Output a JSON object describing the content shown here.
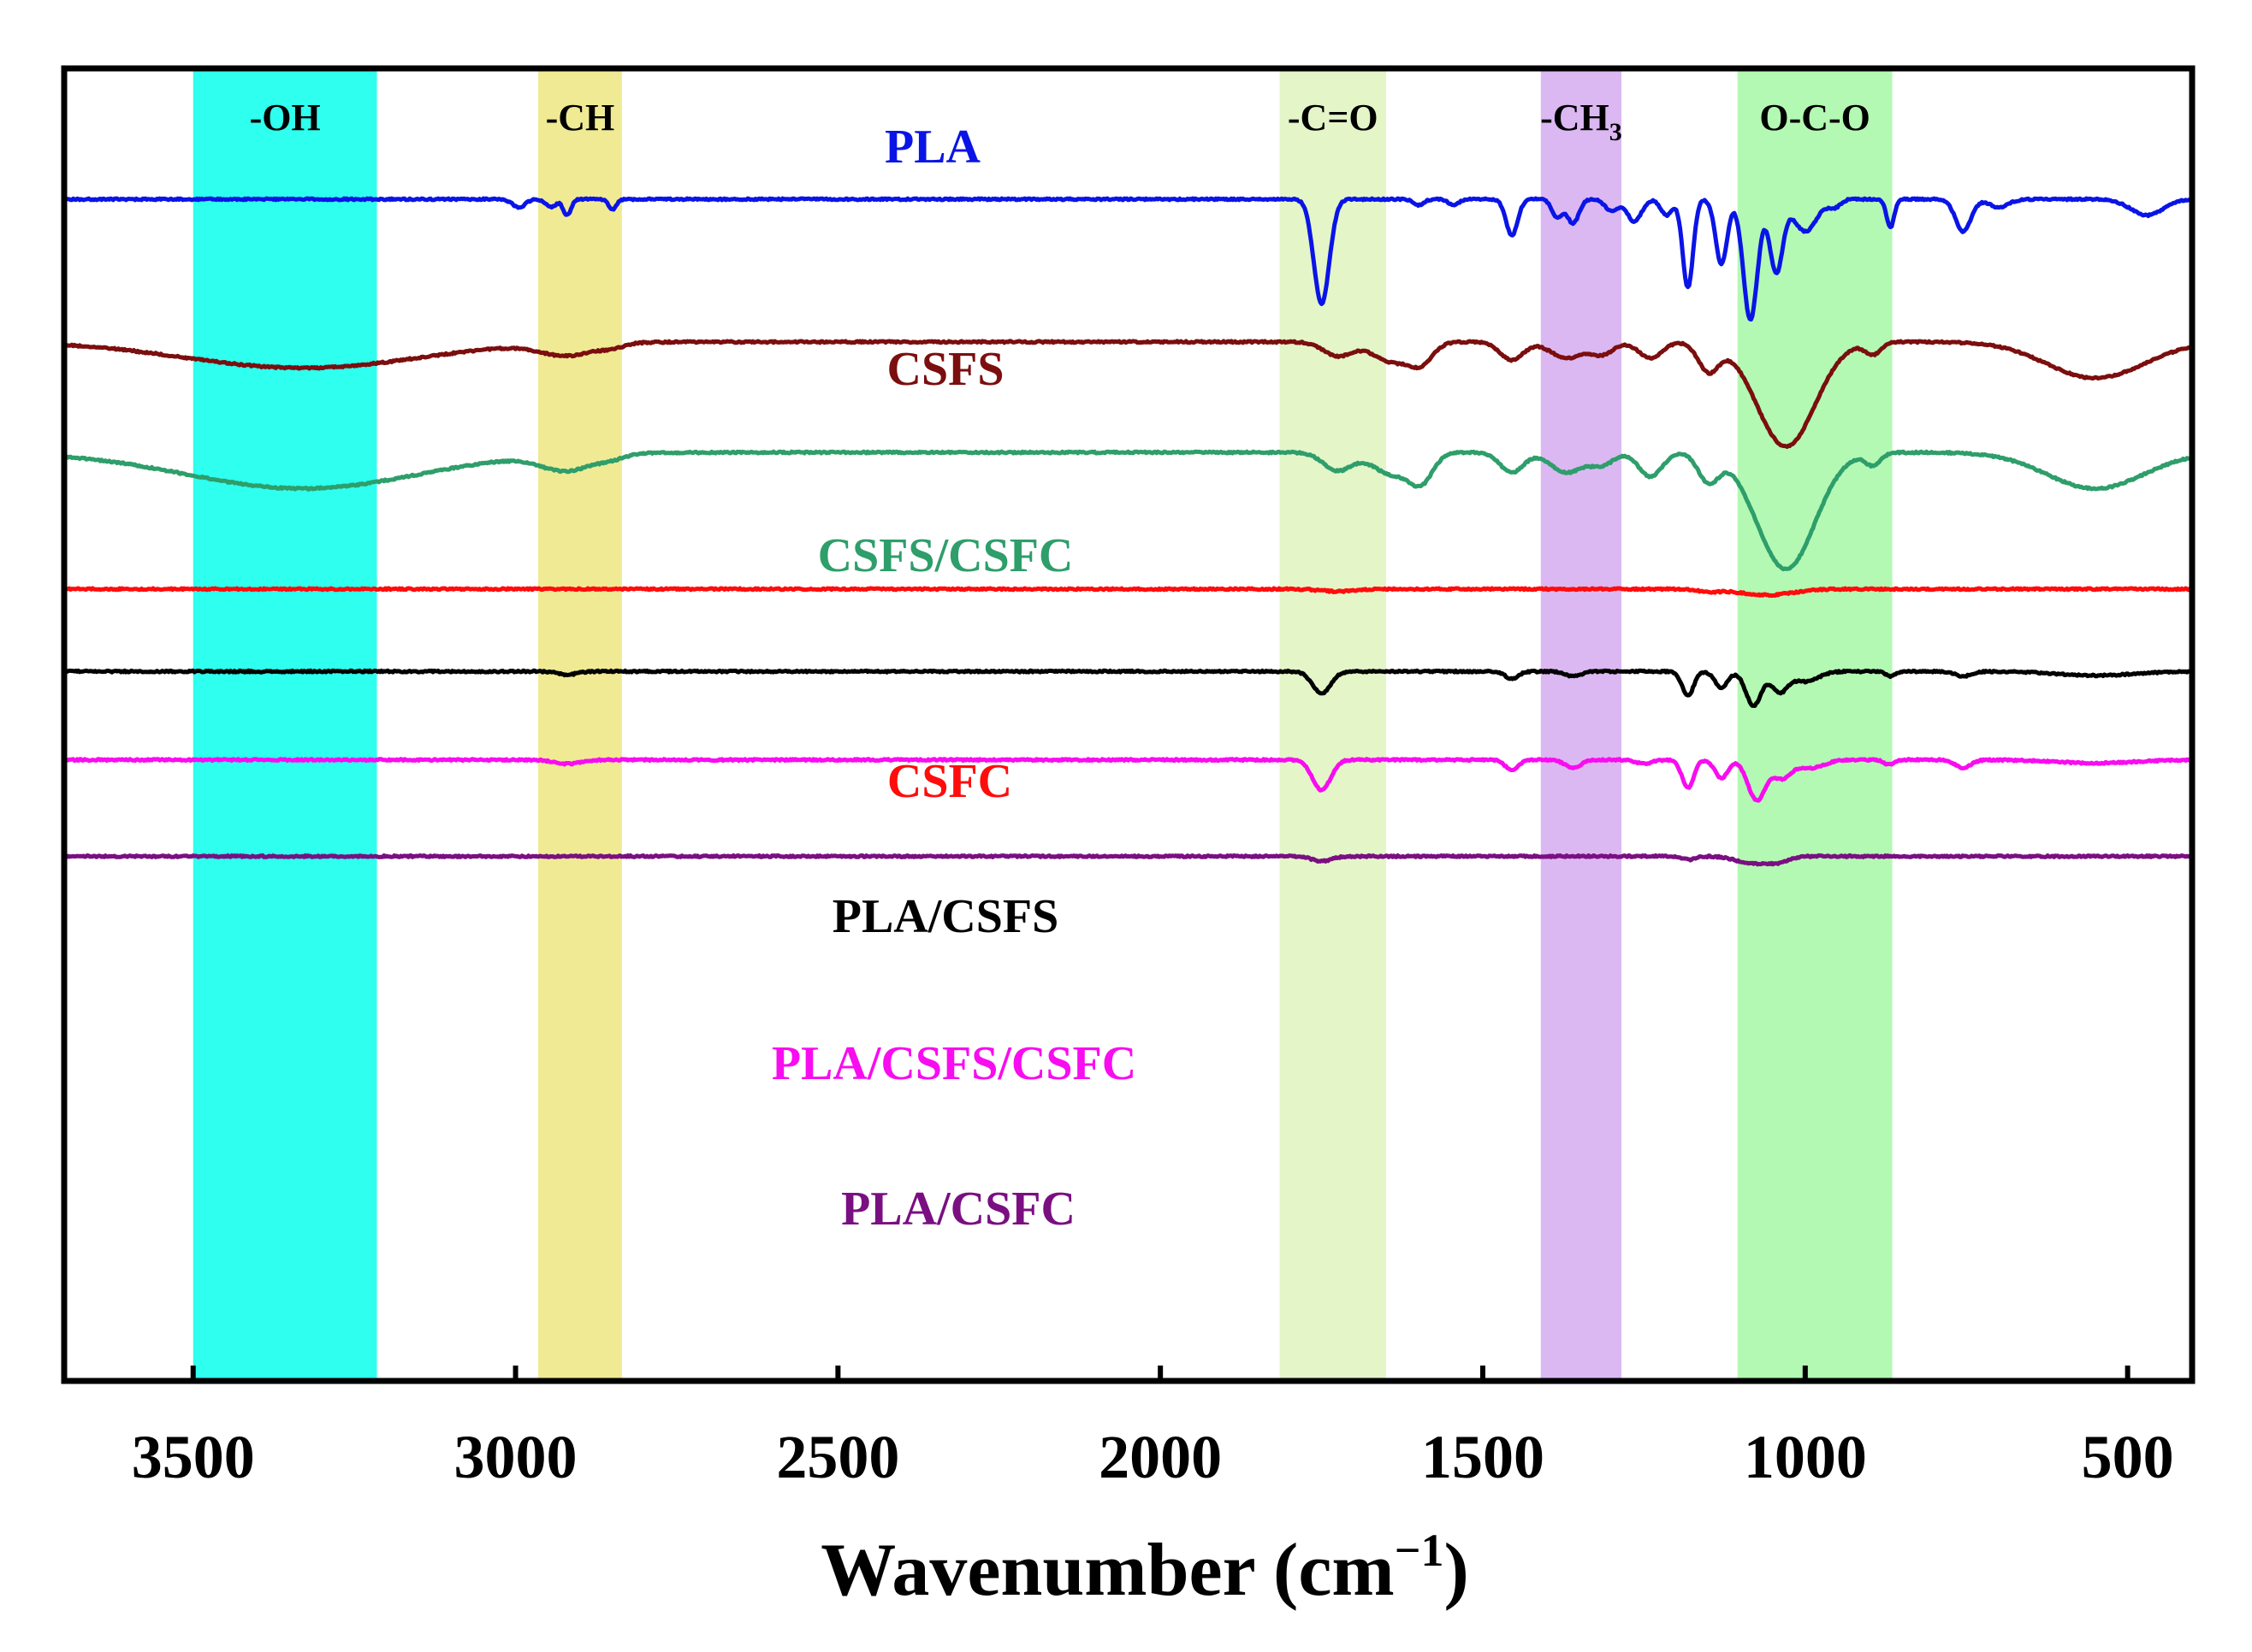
{
  "chart_data": {
    "type": "line",
    "title": "",
    "xlabel": "Wavenumber (cm⁻¹)",
    "xlabel_main": "Wavenumber (cm",
    "xlabel_sup": "−1",
    "xlabel_close": ")",
    "ylabel": "",
    "xlim": [
      3700,
      400
    ],
    "x_reversed": true,
    "grid": false,
    "xticks": [
      3500,
      3000,
      2500,
      2000,
      1500,
      1000,
      500
    ],
    "xtick_labels": [
      "3500",
      "3000",
      "2500",
      "2000",
      "1500",
      "1000",
      "500"
    ],
    "bands": [
      {
        "name": "oh",
        "label": "-OH",
        "x_from": 3500,
        "x_to": 3215,
        "color": "#2effef"
      },
      {
        "name": "ch",
        "label": "-CH",
        "x_from": 2965,
        "x_to": 2835,
        "color": "#f0ea94"
      },
      {
        "name": "co",
        "label": "-C=O",
        "x_from": 1815,
        "x_to": 1650,
        "color": "#e4f5c8"
      },
      {
        "name": "ch3",
        "label": "-CH",
        "label_sub": "3",
        "x_from": 1410,
        "x_to": 1285,
        "color": "#dbb8f2"
      },
      {
        "name": "oco",
        "label": "O-C-O",
        "x_from": 1105,
        "x_to": 865,
        "color": "#b3f9b3"
      }
    ],
    "series": [
      {
        "name": "PLA",
        "color": "#0a14e6",
        "baseline": 0.0,
        "features": [
          {
            "x": 2995,
            "depth": 0.02,
            "width": 10
          },
          {
            "x": 2945,
            "depth": 0.02,
            "width": 8
          },
          {
            "x": 2920,
            "depth": 0.04,
            "width": 6
          },
          {
            "x": 2850,
            "depth": 0.025,
            "width": 6
          },
          {
            "x": 1750,
            "depth": 0.26,
            "width": 12
          },
          {
            "x": 1600,
            "depth": 0.015,
            "width": 8
          },
          {
            "x": 1545,
            "depth": 0.015,
            "width": 8
          },
          {
            "x": 1455,
            "depth": 0.09,
            "width": 9
          },
          {
            "x": 1385,
            "depth": 0.045,
            "width": 8
          },
          {
            "x": 1360,
            "depth": 0.06,
            "width": 9
          },
          {
            "x": 1300,
            "depth": 0.03,
            "width": 10
          },
          {
            "x": 1265,
            "depth": 0.055,
            "width": 11
          },
          {
            "x": 1215,
            "depth": 0.04,
            "width": 9
          },
          {
            "x": 1182,
            "depth": 0.22,
            "width": 8
          },
          {
            "x": 1130,
            "depth": 0.16,
            "width": 9
          },
          {
            "x": 1085,
            "depth": 0.3,
            "width": 11
          },
          {
            "x": 1045,
            "depth": 0.18,
            "width": 10
          },
          {
            "x": 1000,
            "depth": 0.08,
            "width": 18
          },
          {
            "x": 955,
            "depth": 0.02,
            "width": 9
          },
          {
            "x": 868,
            "depth": 0.07,
            "width": 6
          },
          {
            "x": 755,
            "depth": 0.08,
            "width": 12
          },
          {
            "x": 700,
            "depth": 0.02,
            "width": 15
          },
          {
            "x": 470,
            "depth": 0.04,
            "width": 25
          }
        ]
      },
      {
        "name": "CSFS",
        "color": "#7b0e0e",
        "baseline": -0.355,
        "features": [
          {
            "x": 3330,
            "depth": 0.065,
            "width": 180
          },
          {
            "x": 2920,
            "depth": 0.03,
            "width": 40
          },
          {
            "x": 2850,
            "depth": 0.01,
            "width": 20
          },
          {
            "x": 1725,
            "depth": 0.035,
            "width": 22
          },
          {
            "x": 1640,
            "depth": 0.05,
            "width": 30
          },
          {
            "x": 1595,
            "depth": 0.045,
            "width": 18
          },
          {
            "x": 1455,
            "depth": 0.045,
            "width": 18
          },
          {
            "x": 1370,
            "depth": 0.04,
            "width": 25
          },
          {
            "x": 1315,
            "depth": 0.03,
            "width": 18
          },
          {
            "x": 1240,
            "depth": 0.04,
            "width": 18
          },
          {
            "x": 1150,
            "depth": 0.07,
            "width": 16
          },
          {
            "x": 1030,
            "depth": 0.26,
            "width": 45
          },
          {
            "x": 895,
            "depth": 0.03,
            "width": 12
          },
          {
            "x": 550,
            "depth": 0.09,
            "width": 75
          }
        ]
      },
      {
        "name": "CSFS/CSFC",
        "color": "#2e9e6b",
        "baseline": -0.63,
        "features": [
          {
            "x": 3330,
            "depth": 0.09,
            "width": 180
          },
          {
            "x": 2920,
            "depth": 0.04,
            "width": 40
          },
          {
            "x": 2850,
            "depth": 0.01,
            "width": 20
          },
          {
            "x": 1725,
            "depth": 0.045,
            "width": 22
          },
          {
            "x": 1640,
            "depth": 0.055,
            "width": 30
          },
          {
            "x": 1595,
            "depth": 0.065,
            "width": 18
          },
          {
            "x": 1455,
            "depth": 0.05,
            "width": 18
          },
          {
            "x": 1370,
            "depth": 0.05,
            "width": 25
          },
          {
            "x": 1315,
            "depth": 0.03,
            "width": 18
          },
          {
            "x": 1240,
            "depth": 0.06,
            "width": 18
          },
          {
            "x": 1150,
            "depth": 0.07,
            "width": 16
          },
          {
            "x": 1030,
            "depth": 0.29,
            "width": 45
          },
          {
            "x": 895,
            "depth": 0.03,
            "width": 12
          },
          {
            "x": 550,
            "depth": 0.09,
            "width": 75
          }
        ]
      },
      {
        "name": "CSFC",
        "color": "#ff0c0c",
        "baseline": -0.97,
        "features": [
          {
            "x": 1725,
            "depth": 0.006,
            "width": 25
          },
          {
            "x": 1150,
            "depth": 0.006,
            "width": 18
          },
          {
            "x": 1060,
            "depth": 0.015,
            "width": 40
          }
        ]
      },
      {
        "name": "PLA/CSFS",
        "color": "#000000",
        "baseline": -1.175,
        "features": [
          {
            "x": 2920,
            "depth": 0.008,
            "width": 15
          },
          {
            "x": 1750,
            "depth": 0.055,
            "width": 14
          },
          {
            "x": 1455,
            "depth": 0.018,
            "width": 10
          },
          {
            "x": 1360,
            "depth": 0.012,
            "width": 12
          },
          {
            "x": 1182,
            "depth": 0.06,
            "width": 9
          },
          {
            "x": 1130,
            "depth": 0.04,
            "width": 10
          },
          {
            "x": 1080,
            "depth": 0.085,
            "width": 12
          },
          {
            "x": 1040,
            "depth": 0.05,
            "width": 12
          },
          {
            "x": 1000,
            "depth": 0.025,
            "width": 20
          },
          {
            "x": 868,
            "depth": 0.012,
            "width": 7
          },
          {
            "x": 755,
            "depth": 0.012,
            "width": 12
          },
          {
            "x": 550,
            "depth": 0.01,
            "width": 60
          }
        ]
      },
      {
        "name": "PLA/CSFS/CSFC",
        "color": "#f80cf0",
        "baseline": -1.395,
        "features": [
          {
            "x": 2920,
            "depth": 0.01,
            "width": 20
          },
          {
            "x": 1750,
            "depth": 0.075,
            "width": 14
          },
          {
            "x": 1455,
            "depth": 0.025,
            "width": 10
          },
          {
            "x": 1360,
            "depth": 0.02,
            "width": 12
          },
          {
            "x": 1250,
            "depth": 0.01,
            "width": 12
          },
          {
            "x": 1182,
            "depth": 0.07,
            "width": 9
          },
          {
            "x": 1130,
            "depth": 0.045,
            "width": 10
          },
          {
            "x": 1075,
            "depth": 0.1,
            "width": 14
          },
          {
            "x": 1035,
            "depth": 0.045,
            "width": 14
          },
          {
            "x": 990,
            "depth": 0.02,
            "width": 20
          },
          {
            "x": 870,
            "depth": 0.012,
            "width": 8
          },
          {
            "x": 755,
            "depth": 0.02,
            "width": 12
          },
          {
            "x": 550,
            "depth": 0.008,
            "width": 60
          }
        ]
      },
      {
        "name": "PLA/CSFC",
        "color": "#7a0f82",
        "baseline": -1.635,
        "features": [
          {
            "x": 1750,
            "depth": 0.012,
            "width": 15
          },
          {
            "x": 1180,
            "depth": 0.008,
            "width": 10
          },
          {
            "x": 1080,
            "depth": 0.018,
            "width": 25
          },
          {
            "x": 1040,
            "depth": 0.012,
            "width": 15
          }
        ]
      }
    ]
  }
}
